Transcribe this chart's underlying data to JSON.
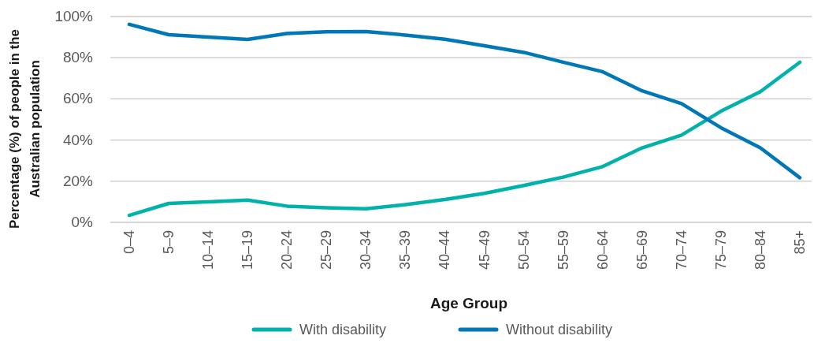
{
  "chart_data": {
    "type": "line",
    "xlabel": "Age Group",
    "ylabel": "Percentage (%) of people in the Australian population",
    "categories": [
      "0–4",
      "5–9",
      "10–14",
      "15–19",
      "20–24",
      "25–29",
      "30–34",
      "35–39",
      "40–44",
      "45–49",
      "50–54",
      "55–59",
      "60–64",
      "65–69",
      "70–74",
      "75–79",
      "80–84",
      "85+"
    ],
    "series": [
      {
        "name": "With disability",
        "color": "#00b2a9",
        "values": [
          3.4,
          9.2,
          10,
          10.8,
          7.9,
          7.1,
          6.6,
          8.6,
          11.1,
          14.1,
          17.9,
          22,
          27.1,
          36.2,
          42.4,
          54,
          63.5,
          77.8
        ]
      },
      {
        "name": "Without disability",
        "color": "#0077b6",
        "values": [
          96.2,
          91.2,
          90,
          88.9,
          91.8,
          92.6,
          92.7,
          91,
          89,
          85.8,
          82.6,
          77.8,
          73.2,
          63.9,
          57.7,
          46,
          36.2,
          21.7
        ]
      }
    ],
    "ylim": [
      0,
      100
    ],
    "yticks": [
      {
        "value": 0,
        "label": "0%"
      },
      {
        "value": 20,
        "label": "20%"
      },
      {
        "value": 40,
        "label": "40%"
      },
      {
        "value": 60,
        "label": "60%"
      },
      {
        "value": 80,
        "label": "80%"
      },
      {
        "value": 100,
        "label": "100%"
      }
    ],
    "grid": "y",
    "legend": "bottom",
    "marker": "none",
    "line_style": "solid"
  }
}
